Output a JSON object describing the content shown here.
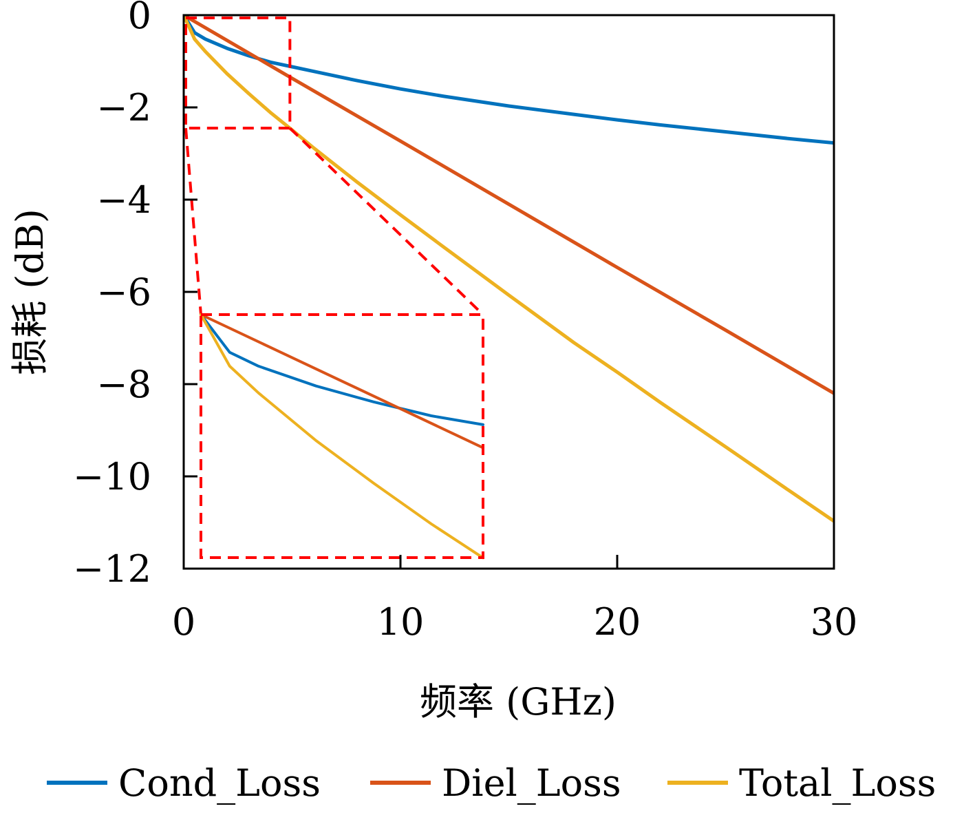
{
  "chart_data": {
    "type": "line",
    "xlabel": "频率 (GHz)",
    "ylabel": "损耗 (dB)",
    "xlim": [
      0,
      30
    ],
    "ylim": [
      -12,
      0
    ],
    "x_ticks": [
      0,
      10,
      20,
      30
    ],
    "x_tick_labels": [
      "0",
      "10",
      "20",
      "30"
    ],
    "y_ticks": [
      0,
      -2,
      -4,
      -6,
      -8,
      -10,
      -12
    ],
    "y_tick_labels": [
      "0",
      "−2",
      "−4",
      "−6",
      "−8",
      "−10",
      "−12"
    ],
    "grid": false,
    "legend_position": "bottom",
    "series": [
      {
        "name": "Cond_Loss",
        "color": "#0072BD",
        "x": [
          0,
          0.5,
          1,
          2,
          3,
          4,
          5,
          6,
          8,
          10,
          12,
          15,
          18,
          20,
          22,
          25,
          28,
          30
        ],
        "y": [
          0,
          -0.38,
          -0.52,
          -0.72,
          -0.88,
          -1.02,
          -1.12,
          -1.22,
          -1.42,
          -1.6,
          -1.76,
          -1.97,
          -2.15,
          -2.27,
          -2.38,
          -2.53,
          -2.68,
          -2.77
        ]
      },
      {
        "name": "Diel_Loss",
        "color": "#D95319",
        "x": [
          0,
          5,
          10,
          15,
          20,
          25,
          30
        ],
        "y": [
          0,
          -1.37,
          -2.73,
          -4.1,
          -5.47,
          -6.83,
          -8.2
        ]
      },
      {
        "name": "Total_Loss",
        "color": "#EDB120",
        "x": [
          0,
          0.5,
          1,
          2,
          3,
          4,
          5,
          6,
          8,
          10,
          12,
          15,
          18,
          20,
          22,
          25,
          28,
          30
        ],
        "y": [
          0,
          -0.52,
          -0.79,
          -1.27,
          -1.7,
          -2.11,
          -2.49,
          -2.88,
          -3.62,
          -4.33,
          -5.03,
          -6.07,
          -7.1,
          -7.74,
          -8.4,
          -9.36,
          -10.33,
          -10.97
        ]
      }
    ],
    "annotations": {
      "zoom_region": {
        "x": [
          0,
          4.9
        ],
        "y": [
          -2.45,
          0
        ]
      },
      "inset_border_color": "#FF0000"
    }
  }
}
